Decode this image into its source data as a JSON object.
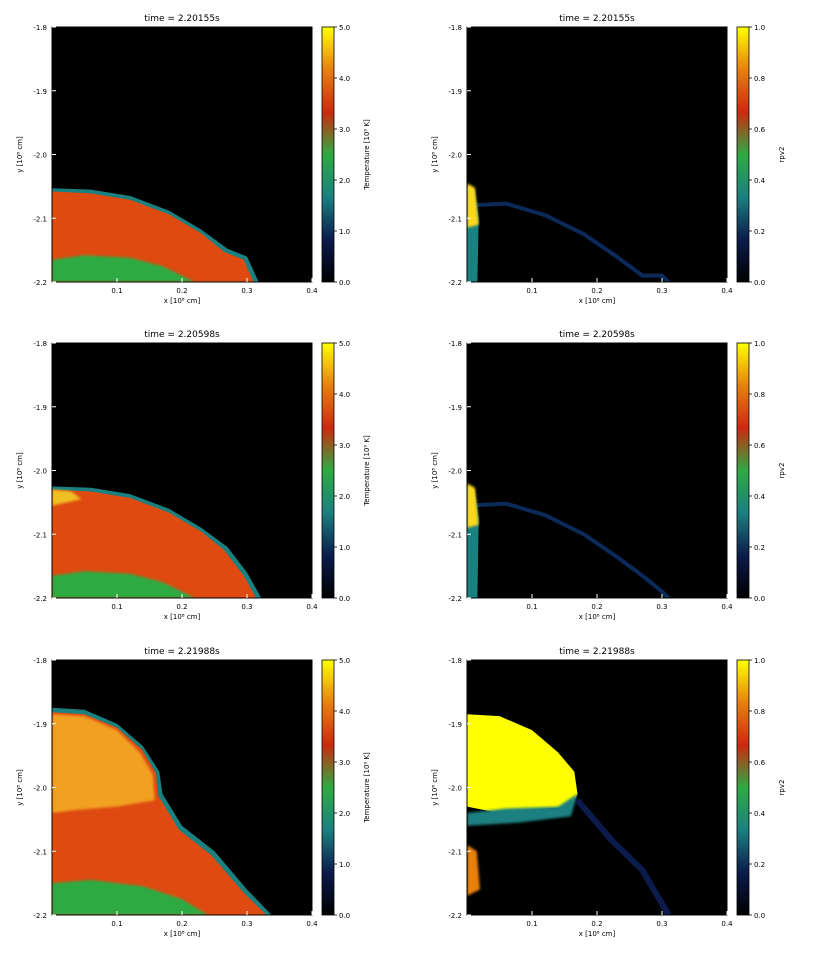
{
  "colormap": [
    "#000000",
    "#0b1b4c",
    "#1a8080",
    "#2eaa42",
    "#cc2a0f",
    "#e88010",
    "#ffff00"
  ],
  "chart_data": [
    {
      "type": "heatmap",
      "title": "time = 2.20155s",
      "xlabel": "x [10⁸ cm]",
      "ylabel": "y [10⁸ cm]",
      "x_ticks": [
        "0.1",
        "0.2",
        "0.3",
        "0.4"
      ],
      "y_ticks": [
        "-1.8",
        "-1.9",
        "-2.0",
        "-2.1",
        "-2.2"
      ],
      "xlim": [
        0.0,
        0.4
      ],
      "ylim": [
        -2.2,
        -1.8
      ],
      "colorbar": {
        "label": "Temperature [10⁹ K]",
        "ticks": [
          "0.0",
          "1.0",
          "2.0",
          "3.0",
          "4.0",
          "5.0"
        ],
        "range": [
          0,
          5
        ]
      },
      "field": "temperature"
    },
    {
      "type": "heatmap",
      "title": "time = 2.20155s",
      "xlabel": "x [10⁸ cm]",
      "ylabel": "y [10⁸ cm]",
      "x_ticks": [
        "0.1",
        "0.2",
        "0.3",
        "0.4"
      ],
      "y_ticks": [
        "-1.8",
        "-1.9",
        "-2.0",
        "-2.1",
        "-2.2"
      ],
      "xlim": [
        0.0,
        0.4
      ],
      "ylim": [
        -2.2,
        -1.8
      ],
      "colorbar": {
        "label": "rpv2",
        "ticks": [
          "0.0",
          "0.2",
          "0.4",
          "0.6",
          "0.8",
          "1.0"
        ],
        "range": [
          0,
          1
        ]
      },
      "field": "rpv2"
    },
    {
      "type": "heatmap",
      "title": "time = 2.20598s",
      "xlabel": "x [10⁸ cm]",
      "ylabel": "y [10⁸ cm]",
      "x_ticks": [
        "0.1",
        "0.2",
        "0.3",
        "0.4"
      ],
      "y_ticks": [
        "-1.8",
        "-1.9",
        "-2.0",
        "-2.1",
        "-2.2"
      ],
      "xlim": [
        0.0,
        0.4
      ],
      "ylim": [
        -2.2,
        -1.8
      ],
      "colorbar": {
        "label": "Temperature [10⁹ K]",
        "ticks": [
          "0.0",
          "1.0",
          "2.0",
          "3.0",
          "4.0",
          "5.0"
        ],
        "range": [
          0,
          5
        ]
      },
      "field": "temperature"
    },
    {
      "type": "heatmap",
      "title": "time = 2.20598s",
      "xlabel": "x [10⁸ cm]",
      "ylabel": "y [10⁸ cm]",
      "x_ticks": [
        "0.1",
        "0.2",
        "0.3",
        "0.4"
      ],
      "y_ticks": [
        "-1.8",
        "-1.9",
        "-2.0",
        "-2.1",
        "-2.2"
      ],
      "xlim": [
        0.0,
        0.4
      ],
      "ylim": [
        -2.2,
        -1.8
      ],
      "colorbar": {
        "label": "rpv2",
        "ticks": [
          "0.0",
          "0.2",
          "0.4",
          "0.6",
          "0.8",
          "1.0"
        ],
        "range": [
          0,
          1
        ]
      },
      "field": "rpv2"
    },
    {
      "type": "heatmap",
      "title": "time = 2.21988s",
      "xlabel": "x [10⁸ cm]",
      "ylabel": "y [10⁸ cm]",
      "x_ticks": [
        "0.1",
        "0.2",
        "0.3",
        "0.4"
      ],
      "y_ticks": [
        "-1.8",
        "-1.9",
        "-2.0",
        "-2.1",
        "-2.2"
      ],
      "xlim": [
        0.0,
        0.4
      ],
      "ylim": [
        -2.2,
        -1.8
      ],
      "colorbar": {
        "label": "Temperature [10⁹ K]",
        "ticks": [
          "0.0",
          "1.0",
          "2.0",
          "3.0",
          "4.0",
          "5.0"
        ],
        "range": [
          0,
          5
        ]
      },
      "field": "temperature"
    },
    {
      "type": "heatmap",
      "title": "time = 2.21988s",
      "xlabel": "x [10⁸ cm]",
      "ylabel": "y [10⁸ cm]",
      "x_ticks": [
        "0.1",
        "0.2",
        "0.3",
        "0.4"
      ],
      "y_ticks": [
        "-1.8",
        "-1.9",
        "-2.0",
        "-2.1",
        "-2.2"
      ],
      "xlim": [
        0.0,
        0.4
      ],
      "ylim": [
        -2.2,
        -1.8
      ],
      "colorbar": {
        "label": "rpv2",
        "ticks": [
          "0.0",
          "0.2",
          "0.4",
          "0.6",
          "0.8",
          "1.0"
        ],
        "range": [
          0,
          1
        ]
      },
      "field": "rpv2"
    }
  ]
}
